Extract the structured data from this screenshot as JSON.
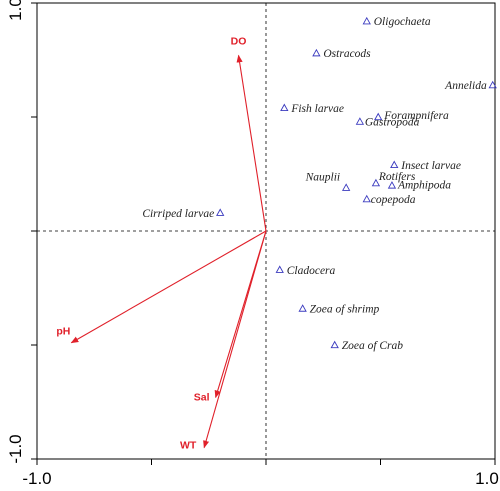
{
  "chart_data": {
    "type": "scatter",
    "title": "",
    "xlabel": "",
    "ylabel": "",
    "xlim": [
      -1.0,
      1.0
    ],
    "ylim": [
      -1.0,
      1.0
    ],
    "x_tick_labels": [
      "-1.0",
      "1.0"
    ],
    "y_tick_labels": [
      "1.0",
      "-1.0"
    ],
    "reference_lines": [
      {
        "axis": "x",
        "value": 0,
        "style": "dashed"
      },
      {
        "axis": "y",
        "value": 0,
        "style": "dashed"
      }
    ],
    "colors": {
      "species": "#3b3bbf",
      "env": "#e0202a",
      "axis": "#000000"
    },
    "series": [
      {
        "kind": "species",
        "marker": "triangle",
        "points": [
          {
            "label": "Oligochaeta",
            "x": 0.44,
            "y": 0.92
          },
          {
            "label": "Ostracods",
            "x": 0.22,
            "y": 0.78
          },
          {
            "label": "Annelida",
            "x": 0.99,
            "y": 0.64
          },
          {
            "label": "Fish larvae",
            "x": 0.08,
            "y": 0.54
          },
          {
            "label": "Forampnifera",
            "x": 0.49,
            "y": 0.5
          },
          {
            "label": "Gastropoda",
            "x": 0.41,
            "y": 0.48
          },
          {
            "label": "Insect larvae",
            "x": 0.56,
            "y": 0.29
          },
          {
            "label": "Nauplii",
            "x": 0.35,
            "y": 0.19
          },
          {
            "label": "Rotifers",
            "x": 0.48,
            "y": 0.21
          },
          {
            "label": "Amphipoda",
            "x": 0.55,
            "y": 0.2
          },
          {
            "label": "copepoda",
            "x": 0.44,
            "y": 0.14
          },
          {
            "label": "Cirriped larvae",
            "x": -0.2,
            "y": 0.08
          },
          {
            "label": "Cladocera",
            "x": 0.06,
            "y": -0.17
          },
          {
            "label": "Zoea of shrimp",
            "x": 0.16,
            "y": -0.34
          },
          {
            "label": "Zoea of Crab",
            "x": 0.3,
            "y": -0.5
          }
        ]
      },
      {
        "kind": "environmental",
        "marker": "arrow",
        "vectors": [
          {
            "label": "DO",
            "x": -0.12,
            "y": 0.77
          },
          {
            "label": "pH",
            "x": -0.85,
            "y": -0.49
          },
          {
            "label": "Sal",
            "x": -0.22,
            "y": -0.73
          },
          {
            "label": "WT",
            "x": -0.27,
            "y": -0.95
          }
        ]
      }
    ]
  }
}
